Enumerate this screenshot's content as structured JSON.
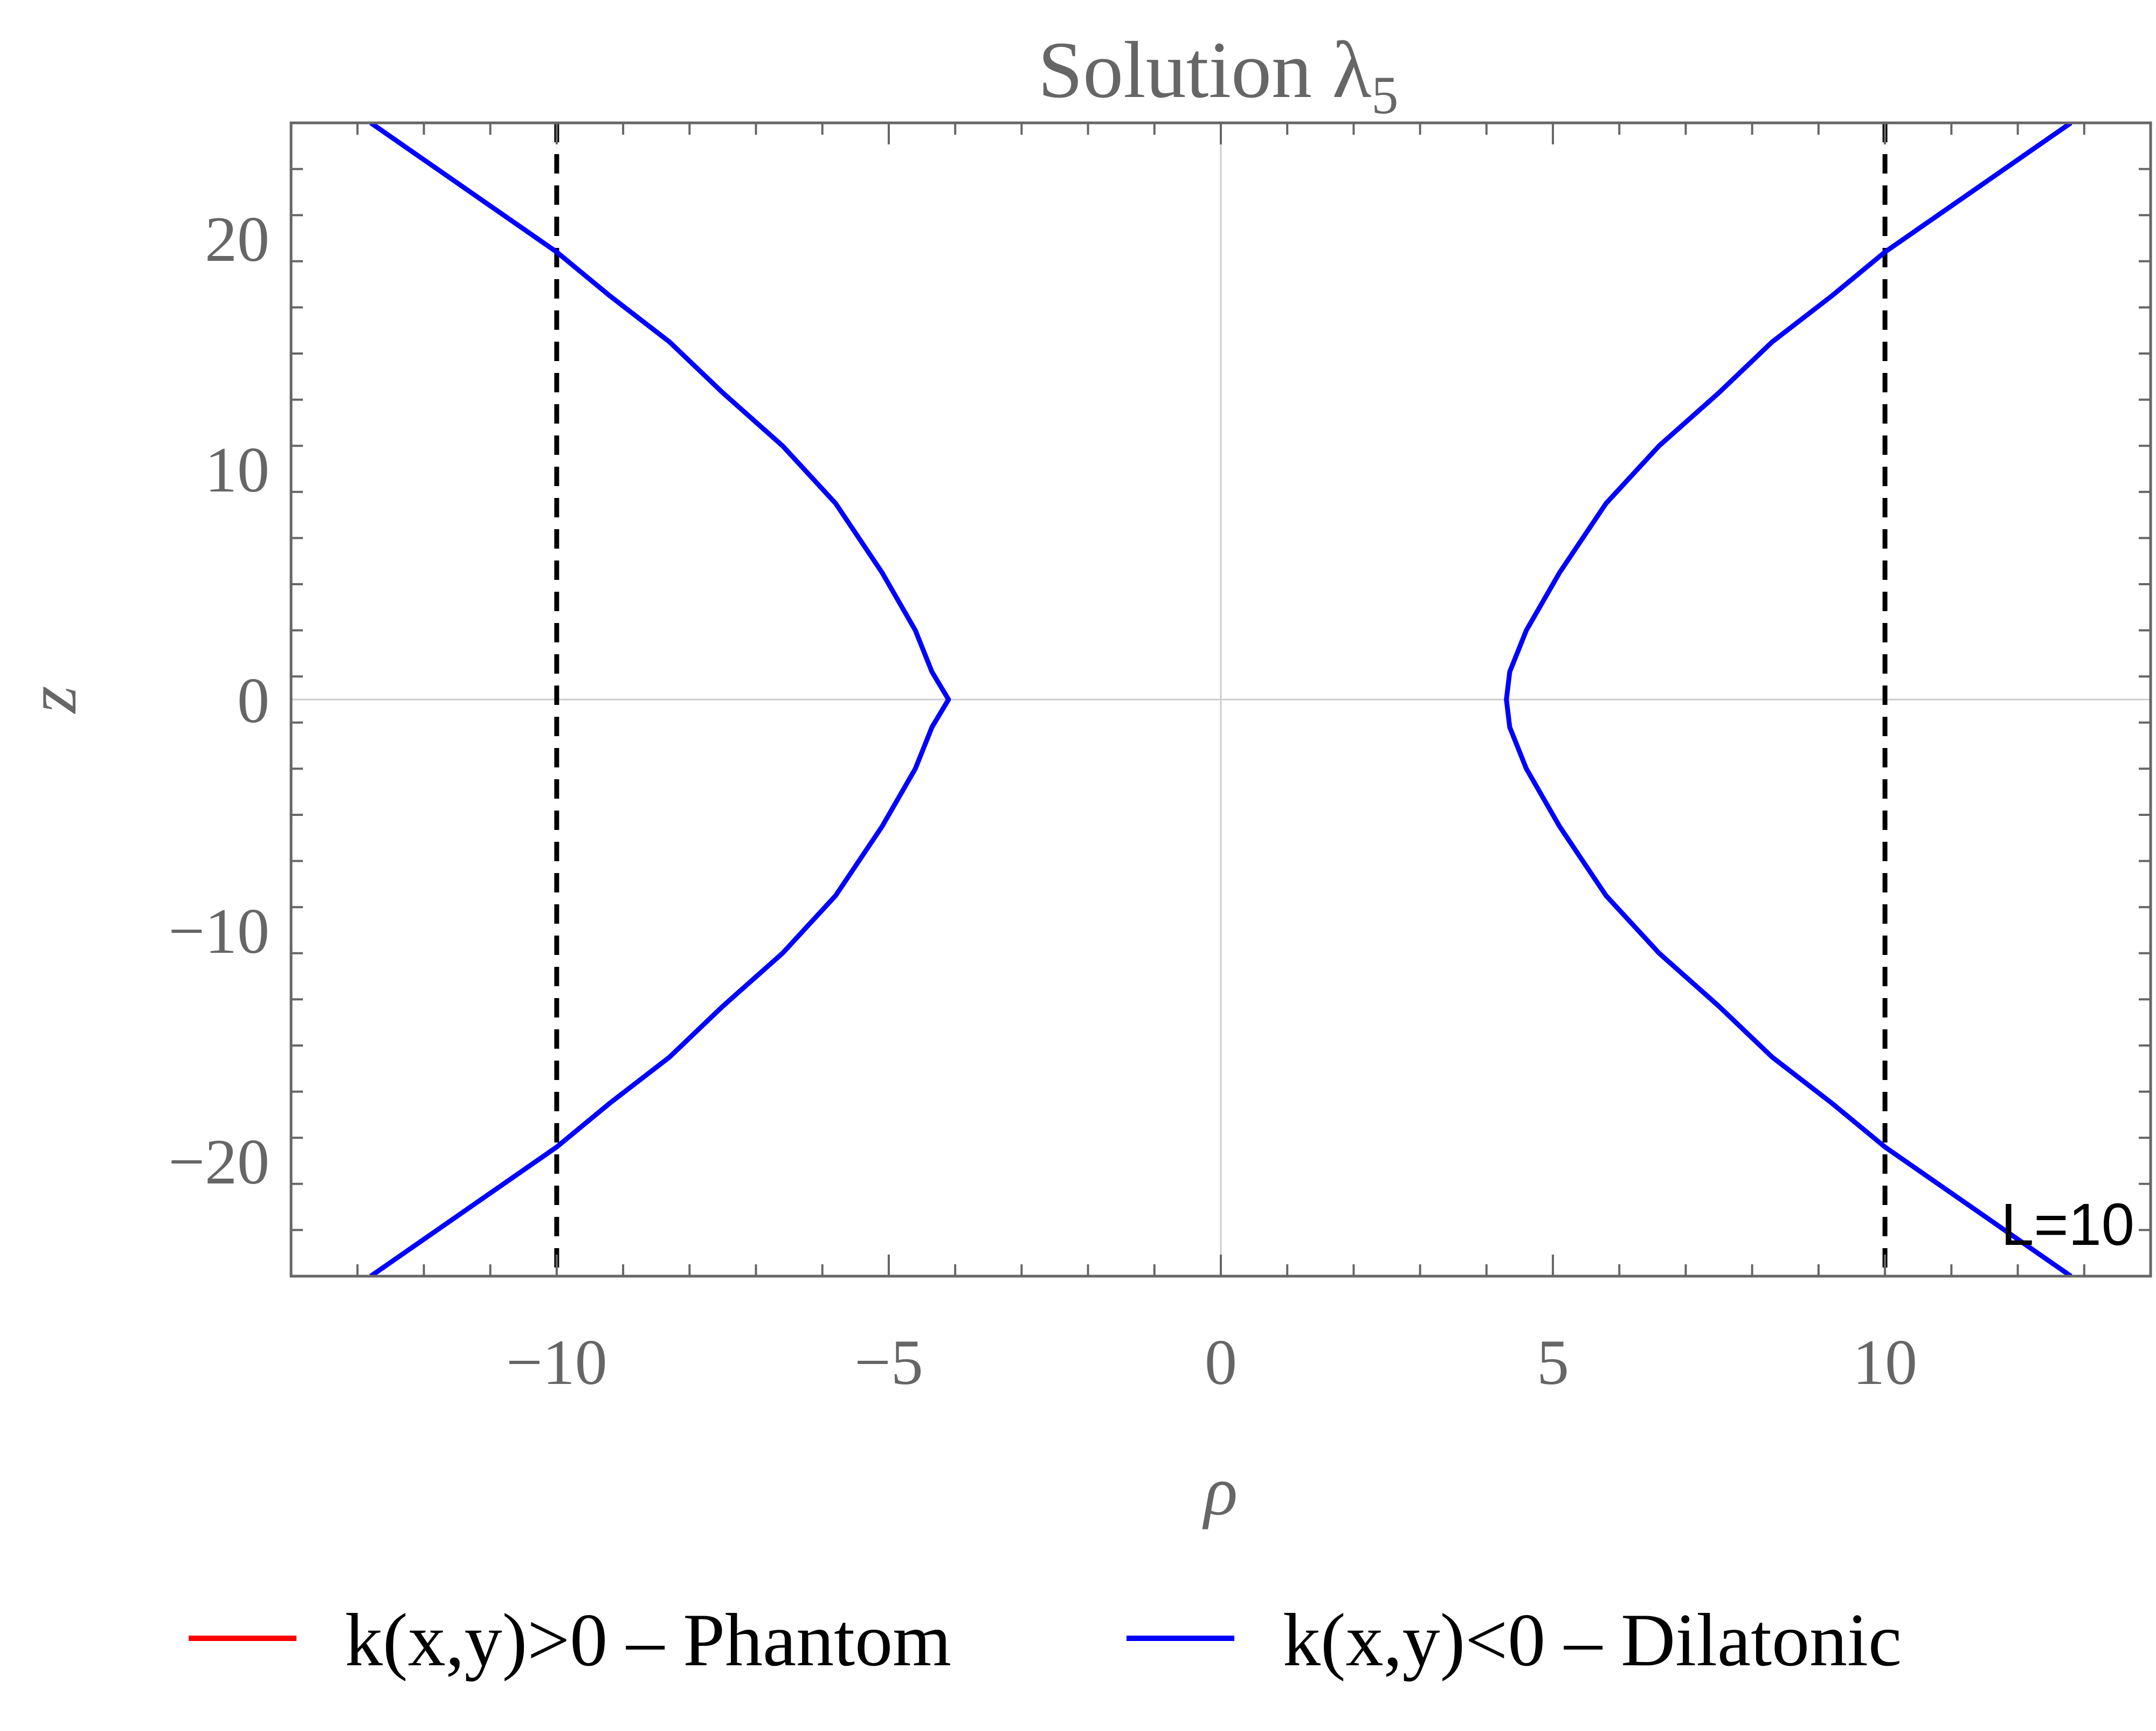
{
  "chart_data": {
    "type": "line",
    "title": "Solution λ",
    "title_subscript": "5",
    "xlabel": "ρ",
    "ylabel": "z",
    "xlim": [
      -14,
      14
    ],
    "ylim": [
      -25,
      25
    ],
    "xticks": [
      -10,
      -5,
      0,
      5,
      10
    ],
    "yticks": [
      -20,
      -10,
      0,
      10,
      20
    ],
    "xtick_labels": [
      "−10",
      "−5",
      "0",
      "5",
      "10"
    ],
    "ytick_labels": [
      "−20",
      "−10",
      "0",
      "10",
      "20"
    ],
    "grid": false,
    "origin_axes": true,
    "series": [
      {
        "name": "k(x,y)>0 – Phantom",
        "color": "#ff0000",
        "points": []
      },
      {
        "name": "k(x,y)<0 – Dilatonic",
        "color": "#0000ff",
        "branches": [
          {
            "points": [
              [
                12.8,
                -25
              ],
              [
                11.8,
                -23
              ],
              [
                10.8,
                -21
              ],
              [
                10.0,
                -19.4
              ],
              [
                9.2,
                -17.5
              ],
              [
                8.3,
                -15.5
              ],
              [
                7.5,
                -13.3
              ],
              [
                6.6,
                -11
              ],
              [
                5.8,
                -8.5
              ],
              [
                5.1,
                -5.5
              ],
              [
                4.6,
                -3
              ],
              [
                4.35,
                -1.2
              ],
              [
                4.3,
                0
              ],
              [
                4.35,
                1.2
              ],
              [
                4.6,
                3
              ],
              [
                5.1,
                5.5
              ],
              [
                5.8,
                8.5
              ],
              [
                6.6,
                11
              ],
              [
                7.5,
                13.3
              ],
              [
                8.3,
                15.5
              ],
              [
                9.2,
                17.5
              ],
              [
                10.0,
                19.4
              ],
              [
                10.8,
                21
              ],
              [
                11.8,
                23
              ],
              [
                12.8,
                25
              ]
            ]
          },
          {
            "points": [
              [
                -12.8,
                -25
              ],
              [
                -11.8,
                -23
              ],
              [
                -10.8,
                -21
              ],
              [
                -10.0,
                -19.4
              ],
              [
                -9.2,
                -17.5
              ],
              [
                -8.3,
                -15.5
              ],
              [
                -7.5,
                -13.3
              ],
              [
                -6.6,
                -11
              ],
              [
                -5.8,
                -8.5
              ],
              [
                -5.1,
                -5.5
              ],
              [
                -4.6,
                -3
              ],
              [
                -4.35,
                -1.2
              ],
              [
                -4.1,
                0
              ],
              [
                -4.35,
                1.2
              ],
              [
                -4.6,
                3
              ],
              [
                -5.1,
                5.5
              ],
              [
                -5.8,
                8.5
              ],
              [
                -6.6,
                11
              ],
              [
                -7.5,
                13.3
              ],
              [
                -8.3,
                15.5
              ],
              [
                -9.2,
                17.5
              ],
              [
                -10.0,
                19.4
              ],
              [
                -10.8,
                21
              ],
              [
                -11.8,
                23
              ],
              [
                -12.8,
                25
              ]
            ]
          }
        ]
      }
    ],
    "reference_lines": [
      {
        "x": -10,
        "style": "dashed",
        "color": "#000000"
      },
      {
        "x": 10,
        "style": "dashed",
        "color": "#000000"
      }
    ],
    "annotation": "L=10",
    "annotation_position": "bottom-right",
    "legend_position": "bottom"
  }
}
